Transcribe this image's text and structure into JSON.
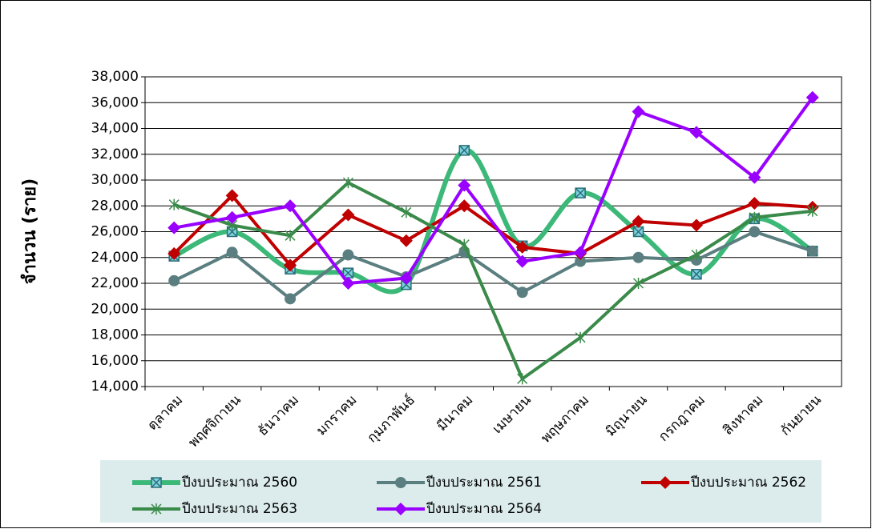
{
  "chart_data": {
    "type": "line",
    "y_label": "จำนวน (ราย)",
    "categories": [
      "ตุลาคม",
      "พฤศจิกายน",
      "ธันวาคม",
      "มกราคม",
      "กุมภาพันธ์",
      "มีนาคม",
      "เมษายน",
      "พฤษภาคม",
      "มิถุนายน",
      "กรกฎาคม",
      "สิงหาคม",
      "กันยายน"
    ],
    "series": [
      {
        "name": "ปีงบประมาณ 2560",
        "color": "#3cb878",
        "marker": "boxed-x",
        "smooth": true,
        "values": [
          24100,
          26000,
          23100,
          22800,
          21900,
          32300,
          24900,
          29000,
          26000,
          22700,
          27000,
          24500
        ]
      },
      {
        "name": "ปีงบประมาณ 2561",
        "color": "#5b7f80",
        "marker": "circle",
        "values": [
          22200,
          24400,
          20800,
          24200,
          22500,
          24400,
          21300,
          23700,
          24000,
          23800,
          26000,
          24500
        ]
      },
      {
        "name": "ปีงบประมาณ 2562",
        "color": "#c00000",
        "marker": "diamond",
        "values": [
          24300,
          28800,
          23400,
          27300,
          25300,
          28000,
          24800,
          24300,
          26800,
          26500,
          28200,
          27900
        ]
      },
      {
        "name": "ปีงบประมาณ 2563",
        "color": "#3a8a4a",
        "marker": "asterisk",
        "values": [
          28100,
          26500,
          25700,
          29800,
          27500,
          25000,
          14600,
          17800,
          22000,
          24200,
          27100,
          27600
        ]
      },
      {
        "name": "ปีงบประมาณ 2564",
        "color": "#9900ff",
        "marker": "diamond",
        "values": [
          26300,
          27100,
          28000,
          22000,
          22400,
          29600,
          23700,
          24400,
          35300,
          33700,
          30200,
          36400
        ]
      }
    ],
    "ylim": [
      14000,
      38000
    ],
    "yticks": [
      {
        "value": 14000,
        "label": "14,000"
      },
      {
        "value": 16000,
        "label": "16,000"
      },
      {
        "value": 18000,
        "label": "18,000"
      },
      {
        "value": 20000,
        "label": "20,000"
      },
      {
        "value": 22000,
        "label": "22,000"
      },
      {
        "value": 24000,
        "label": "24,000"
      },
      {
        "value": 26000,
        "label": "26,000"
      },
      {
        "value": 28000,
        "label": "28,000"
      },
      {
        "value": 30000,
        "label": "30,000"
      },
      {
        "value": 32000,
        "label": "32,000"
      },
      {
        "value": 34000,
        "label": "34,000"
      },
      {
        "value": 36000,
        "label": "36,000"
      },
      {
        "value": 38000,
        "label": "38,000"
      }
    ],
    "grid": true,
    "legend": "bottom"
  }
}
